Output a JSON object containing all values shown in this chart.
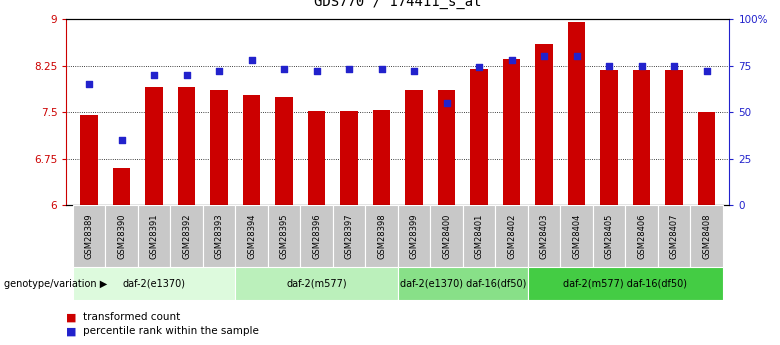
{
  "title": "GDS770 / 174411_s_at",
  "samples": [
    "GSM28389",
    "GSM28390",
    "GSM28391",
    "GSM28392",
    "GSM28393",
    "GSM28394",
    "GSM28395",
    "GSM28396",
    "GSM28397",
    "GSM28398",
    "GSM28399",
    "GSM28400",
    "GSM28401",
    "GSM28402",
    "GSM28403",
    "GSM28404",
    "GSM28405",
    "GSM28406",
    "GSM28407",
    "GSM28408"
  ],
  "transformed_count": [
    7.45,
    6.6,
    7.9,
    7.9,
    7.85,
    7.78,
    7.75,
    7.52,
    7.52,
    7.53,
    7.85,
    7.85,
    8.2,
    8.35,
    8.6,
    8.95,
    8.18,
    8.18,
    8.18,
    7.5
  ],
  "percentile_rank": [
    65,
    35,
    70,
    70,
    72,
    78,
    73,
    72,
    73,
    73,
    72,
    55,
    74,
    78,
    80,
    80,
    75,
    75,
    75,
    72
  ],
  "ylim_left": [
    6,
    9
  ],
  "ylim_right": [
    0,
    100
  ],
  "yticks_left": [
    6,
    6.75,
    7.5,
    8.25,
    9
  ],
  "yticks_right": [
    0,
    25,
    50,
    75,
    100
  ],
  "ytick_labels_right": [
    "0",
    "25",
    "50",
    "75",
    "100%"
  ],
  "bar_color": "#cc0000",
  "scatter_color": "#2222cc",
  "genotype_groups": [
    {
      "label": "daf-2(e1370)",
      "start": 0,
      "end": 4,
      "color": "#ddfadd"
    },
    {
      "label": "daf-2(m577)",
      "start": 5,
      "end": 9,
      "color": "#bbf0bb"
    },
    {
      "label": "daf-2(e1370) daf-16(df50)",
      "start": 10,
      "end": 13,
      "color": "#88e088"
    },
    {
      "label": "daf-2(m577) daf-16(df50)",
      "start": 14,
      "end": 19,
      "color": "#44cc44"
    }
  ],
  "legend_items": [
    {
      "label": "transformed count",
      "color": "#cc0000"
    },
    {
      "label": "percentile rank within the sample",
      "color": "#2222cc"
    }
  ],
  "genotype_label": "genotype/variation",
  "sample_row_color": "#c8c8c8",
  "title_fontsize": 10,
  "tick_fontsize": 7.5,
  "bar_width": 0.55,
  "scatter_size": 20
}
